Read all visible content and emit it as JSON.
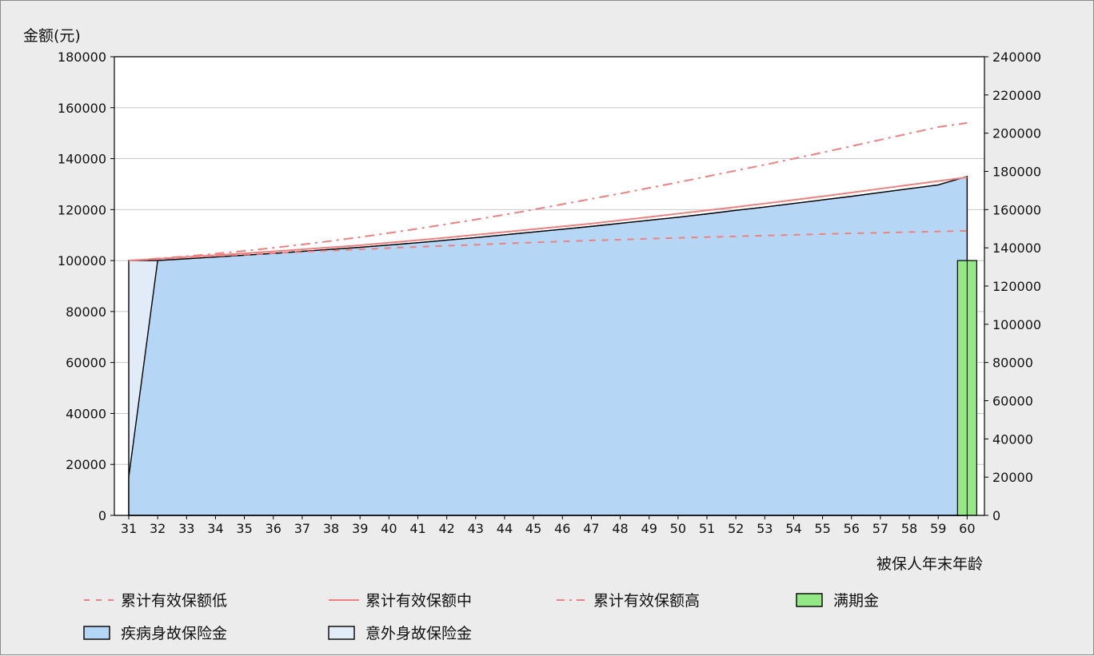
{
  "chart_data": {
    "type": "area",
    "ylabel_left": "金额(元)",
    "xlabel": "被保人年末年龄",
    "ylim_left": [
      0,
      180000
    ],
    "ylim_right": [
      0,
      240000
    ],
    "yticks_left": [
      "0",
      "20000",
      "40000",
      "60000",
      "80000",
      "100000",
      "120000",
      "140000",
      "160000",
      "180000"
    ],
    "yticks_right": [
      "0",
      "20000",
      "40000",
      "60000",
      "80000",
      "100000",
      "120000",
      "140000",
      "160000",
      "180000",
      "200000",
      "220000",
      "240000"
    ],
    "grid": true,
    "legend_position": "bottom",
    "x": [
      31,
      32,
      33,
      34,
      35,
      36,
      37,
      38,
      39,
      40,
      41,
      42,
      43,
      44,
      45,
      46,
      47,
      48,
      49,
      50,
      51,
      52,
      53,
      54,
      55,
      56,
      57,
      58,
      59,
      60
    ],
    "x_labels": [
      "31",
      "32",
      "33",
      "34",
      "35",
      "36",
      "37",
      "38",
      "39",
      "40",
      "41",
      "42",
      "43",
      "44",
      "45",
      "46",
      "47",
      "48",
      "49",
      "50",
      "51",
      "52",
      "53",
      "54",
      "55",
      "56",
      "57",
      "58",
      "59",
      "60"
    ],
    "series": [
      {
        "name": "累计有效保额低",
        "type": "line",
        "style": "dashed",
        "color": "#f08080",
        "values": [
          100000,
          100600,
          101200,
          101800,
          102300,
          102900,
          103400,
          103900,
          104400,
          104900,
          105400,
          105800,
          106200,
          106700,
          107100,
          107500,
          107900,
          108200,
          108600,
          108900,
          109200,
          109500,
          109800,
          110100,
          110400,
          110700,
          110900,
          111200,
          111400,
          111700
        ]
      },
      {
        "name": "累计有效保额中",
        "type": "line",
        "style": "solid",
        "color": "#f08080",
        "values": [
          100000,
          100700,
          101400,
          102100,
          102800,
          103600,
          104400,
          105200,
          106000,
          107000,
          108000,
          109000,
          110100,
          111200,
          112300,
          113400,
          114500,
          115800,
          117100,
          118400,
          119700,
          121000,
          122400,
          123800,
          125200,
          126700,
          128200,
          129700,
          131200,
          132700
        ]
      },
      {
        "name": "累计有效保额高",
        "type": "line",
        "style": "dashdot",
        "color": "#f08080",
        "values": [
          100000,
          100800,
          101700,
          102700,
          103800,
          105000,
          106300,
          107700,
          109200,
          110800,
          112500,
          114300,
          116100,
          118000,
          120000,
          122100,
          124200,
          126300,
          128500,
          130700,
          133000,
          135300,
          137600,
          140000,
          142400,
          144900,
          147400,
          149900,
          152400,
          154000
        ]
      },
      {
        "name": "满期金",
        "type": "bar",
        "color": "#95e886",
        "values": [
          0,
          0,
          0,
          0,
          0,
          0,
          0,
          0,
          0,
          0,
          0,
          0,
          0,
          0,
          0,
          0,
          0,
          0,
          0,
          0,
          0,
          0,
          0,
          0,
          0,
          0,
          0,
          0,
          0,
          100000
        ]
      },
      {
        "name": "疾病身故保险金",
        "type": "area",
        "color": "#b5d6f5",
        "values": [
          15000,
          100000,
          100700,
          101400,
          102100,
          102800,
          103600,
          104400,
          105200,
          106100,
          107000,
          108000,
          109000,
          110100,
          111200,
          112300,
          113400,
          114600,
          115800,
          117000,
          118300,
          119700,
          121000,
          122400,
          123800,
          125200,
          126700,
          128200,
          129700,
          133000
        ]
      },
      {
        "name": "意外身故保险金",
        "type": "area",
        "color": "#e1ecf8",
        "values": [
          100000,
          100000,
          100700,
          101400,
          102100,
          102800,
          103600,
          104400,
          105200,
          106100,
          107000,
          108000,
          109000,
          110100,
          111200,
          112300,
          113400,
          114600,
          115800,
          117000,
          118300,
          119700,
          121000,
          122400,
          123800,
          125200,
          126700,
          128200,
          129700,
          133000
        ]
      }
    ]
  }
}
